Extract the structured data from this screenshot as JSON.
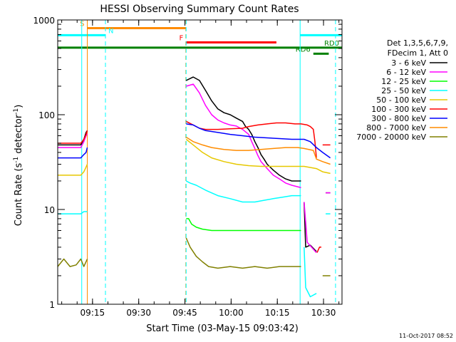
{
  "chart_data": {
    "type": "line",
    "title": "HESSI Observing Summary Count Rates",
    "xlabel": "Start Time (03-May-15 09:03:42)",
    "ylabel_parts": [
      "Count Rate (s",
      "-1",
      " detector",
      "-1",
      ")"
    ],
    "yscale": "log",
    "ylim": [
      1,
      1000
    ],
    "xlim_minutes": [
      0,
      92.3
    ],
    "x_ticks": [
      {
        "label": "09:15",
        "min": 11.3
      },
      {
        "label": "09:30",
        "min": 26.3
      },
      {
        "label": "09:45",
        "min": 41.3
      },
      {
        "label": "10:00",
        "min": 56.3
      },
      {
        "label": "10:15",
        "min": 71.3
      },
      {
        "label": "10:30",
        "min": 86.3
      }
    ],
    "y_ticks": [
      {
        "label": "1",
        "value": 1
      },
      {
        "label": "10",
        "value": 10
      },
      {
        "label": "100",
        "value": 100
      },
      {
        "label": "1000",
        "value": 1000
      }
    ],
    "legend_header": [
      "Det 1,3,5,6,7,9,",
      "FDecim 1, Att 0"
    ],
    "series": [
      {
        "name": "3 - 6 keV",
        "color": "#000000",
        "points": [
          [
            0,
            48
          ],
          [
            7.5,
            48
          ],
          [
            8.5,
            55
          ],
          [
            9.2,
            65
          ],
          [
            9.6,
            68
          ],
          [
            41.7,
            null
          ],
          [
            41.7,
            230
          ],
          [
            44,
            250
          ],
          [
            46,
            230
          ],
          [
            48,
            180
          ],
          [
            50,
            140
          ],
          [
            52,
            115
          ],
          [
            54,
            105
          ],
          [
            56,
            100
          ],
          [
            58,
            92
          ],
          [
            60,
            85
          ],
          [
            61,
            75
          ],
          [
            62,
            70
          ],
          [
            63,
            62
          ],
          [
            64,
            52
          ],
          [
            65,
            45
          ],
          [
            66,
            38
          ],
          [
            67,
            34
          ],
          [
            68,
            30
          ],
          [
            70,
            26
          ],
          [
            72,
            23
          ],
          [
            74,
            21
          ],
          [
            76,
            20
          ],
          [
            79,
            20
          ],
          [
            80,
            null
          ],
          [
            80,
            12
          ],
          [
            80.5,
            4
          ],
          [
            82,
            4.2
          ],
          [
            84,
            3.6
          ],
          [
            84.5,
            null
          ],
          [
            87,
            15
          ],
          [
            88.5,
            15
          ]
        ]
      },
      {
        "name": "6 - 12 keV",
        "color": "#ff00ff",
        "points": [
          [
            0,
            45
          ],
          [
            7.5,
            45
          ],
          [
            8.5,
            52
          ],
          [
            9.2,
            60
          ],
          [
            9.6,
            63
          ],
          [
            41.7,
            null
          ],
          [
            41.7,
            200
          ],
          [
            44,
            210
          ],
          [
            46,
            170
          ],
          [
            48,
            125
          ],
          [
            50,
            100
          ],
          [
            52,
            88
          ],
          [
            54,
            82
          ],
          [
            56,
            78
          ],
          [
            58,
            76
          ],
          [
            60,
            70
          ],
          [
            62,
            62
          ],
          [
            63,
            52
          ],
          [
            64,
            44
          ],
          [
            65,
            37
          ],
          [
            66,
            32
          ],
          [
            68,
            27
          ],
          [
            70,
            23
          ],
          [
            72,
            21
          ],
          [
            74,
            19
          ],
          [
            76,
            18
          ],
          [
            79,
            17
          ],
          [
            80,
            null
          ],
          [
            80,
            12
          ],
          [
            81,
            4.5
          ],
          [
            84,
            3.5
          ],
          [
            84.5,
            null
          ],
          [
            87,
            15
          ],
          [
            88.5,
            15
          ]
        ]
      },
      {
        "name": "12 - 25 keV",
        "color": "#00ff00",
        "points": [
          [
            41.7,
            8
          ],
          [
            42.5,
            8
          ],
          [
            43.5,
            7
          ],
          [
            45,
            6.5
          ],
          [
            47,
            6.2
          ],
          [
            50,
            6
          ],
          [
            55,
            6
          ],
          [
            60,
            6
          ],
          [
            65,
            6
          ],
          [
            70,
            6
          ],
          [
            75,
            6
          ],
          [
            79,
            6
          ]
        ]
      },
      {
        "name": "25 - 50 keV",
        "color": "#00ffff",
        "points": [
          [
            0,
            9
          ],
          [
            7.5,
            9
          ],
          [
            8.5,
            9.5
          ],
          [
            9.6,
            9.5
          ],
          [
            41.7,
            null
          ],
          [
            41.7,
            20
          ],
          [
            43,
            19
          ],
          [
            45,
            18
          ],
          [
            48,
            16
          ],
          [
            52,
            14
          ],
          [
            56,
            13
          ],
          [
            60,
            12
          ],
          [
            64,
            12
          ],
          [
            67,
            12.5
          ],
          [
            70,
            13
          ],
          [
            73,
            13.5
          ],
          [
            76,
            14
          ],
          [
            79,
            14
          ],
          [
            80,
            null
          ],
          [
            80,
            4
          ],
          [
            80.5,
            1.5
          ],
          [
            82,
            1.2
          ],
          [
            84,
            1.3
          ],
          [
            84.5,
            null
          ],
          [
            87,
            9
          ],
          [
            88.5,
            9
          ]
        ]
      },
      {
        "name": "50 - 100 keV",
        "color": "#e6c800",
        "points": [
          [
            0,
            23
          ],
          [
            7.5,
            23
          ],
          [
            8.5,
            25
          ],
          [
            9.2,
            28
          ],
          [
            9.6,
            30
          ],
          [
            41.7,
            null
          ],
          [
            41.7,
            55
          ],
          [
            44,
            48
          ],
          [
            47,
            40
          ],
          [
            50,
            35
          ],
          [
            54,
            32
          ],
          [
            58,
            30
          ],
          [
            62,
            29
          ],
          [
            66,
            28.5
          ],
          [
            70,
            28.5
          ],
          [
            74,
            28.5
          ],
          [
            78,
            28.5
          ],
          [
            80,
            28.5
          ],
          [
            84,
            27
          ],
          [
            86,
            25
          ],
          [
            88.5,
            24
          ]
        ]
      },
      {
        "name": "100 - 300 keV",
        "color": "#ff0000",
        "points": [
          [
            0,
            50
          ],
          [
            7.5,
            50
          ],
          [
            8.5,
            55
          ],
          [
            9.2,
            62
          ],
          [
            9.6,
            68
          ],
          [
            41.7,
            null
          ],
          [
            41.7,
            85
          ],
          [
            44,
            78
          ],
          [
            46,
            72
          ],
          [
            48,
            70
          ],
          [
            52,
            70
          ],
          [
            56,
            71
          ],
          [
            60,
            72
          ],
          [
            62,
            75
          ],
          [
            65,
            78
          ],
          [
            68,
            80
          ],
          [
            71,
            82
          ],
          [
            74,
            82
          ],
          [
            77,
            80
          ],
          [
            79,
            80
          ],
          [
            81,
            78
          ],
          [
            82,
            75
          ],
          [
            83,
            70
          ],
          [
            83.5,
            52
          ],
          [
            84,
            35
          ],
          [
            84.2,
            null
          ],
          [
            84.2,
            3.5
          ],
          [
            85,
            4
          ],
          [
            85.6,
            4
          ],
          [
            86,
            null
          ],
          [
            86,
            48
          ],
          [
            88.5,
            48
          ]
        ]
      },
      {
        "name": "300 - 800 keV",
        "color": "#0000ff",
        "points": [
          [
            0,
            35
          ],
          [
            7.5,
            35
          ],
          [
            8.5,
            38
          ],
          [
            9.2,
            40
          ],
          [
            9.6,
            45
          ],
          [
            41.7,
            null
          ],
          [
            41.7,
            80
          ],
          [
            44,
            78
          ],
          [
            46,
            72
          ],
          [
            48,
            68
          ],
          [
            52,
            65
          ],
          [
            56,
            62
          ],
          [
            60,
            60
          ],
          [
            64,
            58
          ],
          [
            68,
            57
          ],
          [
            72,
            56
          ],
          [
            76,
            55
          ],
          [
            80,
            55
          ],
          [
            82,
            52
          ],
          [
            84,
            45
          ],
          [
            86,
            40
          ],
          [
            88.5,
            35
          ]
        ]
      },
      {
        "name": "800 - 7000 keV",
        "color": "#ff8c00",
        "points": [
          [
            41.7,
            58
          ],
          [
            44,
            52
          ],
          [
            47,
            48
          ],
          [
            50,
            45
          ],
          [
            54,
            43
          ],
          [
            58,
            42
          ],
          [
            62,
            42
          ],
          [
            66,
            43
          ],
          [
            70,
            44
          ],
          [
            74,
            45
          ],
          [
            78,
            45
          ],
          [
            80,
            44
          ],
          [
            83,
            42
          ],
          [
            84,
            34
          ],
          [
            86,
            32
          ],
          [
            88.5,
            30
          ]
        ]
      },
      {
        "name": "7000 - 20000 keV",
        "color": "#808000",
        "points": [
          [
            0,
            2.5
          ],
          [
            2,
            3
          ],
          [
            4,
            2.5
          ],
          [
            6,
            2.6
          ],
          [
            7.5,
            3
          ],
          [
            8.5,
            2.5
          ],
          [
            9.6,
            3
          ],
          [
            41.7,
            null
          ],
          [
            41.7,
            5
          ],
          [
            43,
            4
          ],
          [
            45,
            3.2
          ],
          [
            47,
            2.8
          ],
          [
            49,
            2.5
          ],
          [
            52,
            2.4
          ],
          [
            56,
            2.5
          ],
          [
            60,
            2.4
          ],
          [
            64,
            2.5
          ],
          [
            68,
            2.4
          ],
          [
            72,
            2.5
          ],
          [
            76,
            2.5
          ],
          [
            79,
            2.5
          ],
          [
            80,
            null
          ],
          [
            86,
            2
          ],
          [
            88.5,
            2
          ]
        ]
      }
    ],
    "vertical_lines": [
      {
        "min": 7.8,
        "color": "#00ffff",
        "style": "solid"
      },
      {
        "min": 9.6,
        "color": "#ff8c00",
        "style": "solid"
      },
      {
        "min": 15.5,
        "color": "#00ffff",
        "style": "dashed"
      },
      {
        "min": 41.6,
        "color": "#ff8c00",
        "style": "dashed"
      },
      {
        "min": 41.7,
        "color": "#00ffff",
        "style": "dashed"
      },
      {
        "min": 78.7,
        "color": "#00ffff",
        "style": "solid"
      },
      {
        "min": 90.2,
        "color": "#00ffff",
        "style": "dashed"
      }
    ],
    "flag_bars": [
      {
        "label": "S",
        "color": "#ff8c00",
        "start": 9.6,
        "end": 41.6,
        "value": 820,
        "label_side": "left"
      },
      {
        "label": "N",
        "color": "#00ffff",
        "start": 0,
        "end": 15.5,
        "value": 690,
        "label_side": "right"
      },
      {
        "label": "N",
        "color": "#00ffff",
        "start": 78.7,
        "end": 92.3,
        "value": 690,
        "label_side": "none"
      },
      {
        "label": "F",
        "color": "#ff0000",
        "start": 41.7,
        "end": 71.0,
        "value": 580,
        "label_side": "left"
      },
      {
        "label": "RD0",
        "color": "#008000",
        "start": 0,
        "end": 92.3,
        "value": 510,
        "label_side": "end"
      },
      {
        "label": "RD6",
        "color": "#008000",
        "start": 83.0,
        "end": 88.0,
        "value": 440,
        "label_side": "left"
      }
    ]
  },
  "footer": {
    "date_label": "11-Oct-2017 08:52"
  }
}
